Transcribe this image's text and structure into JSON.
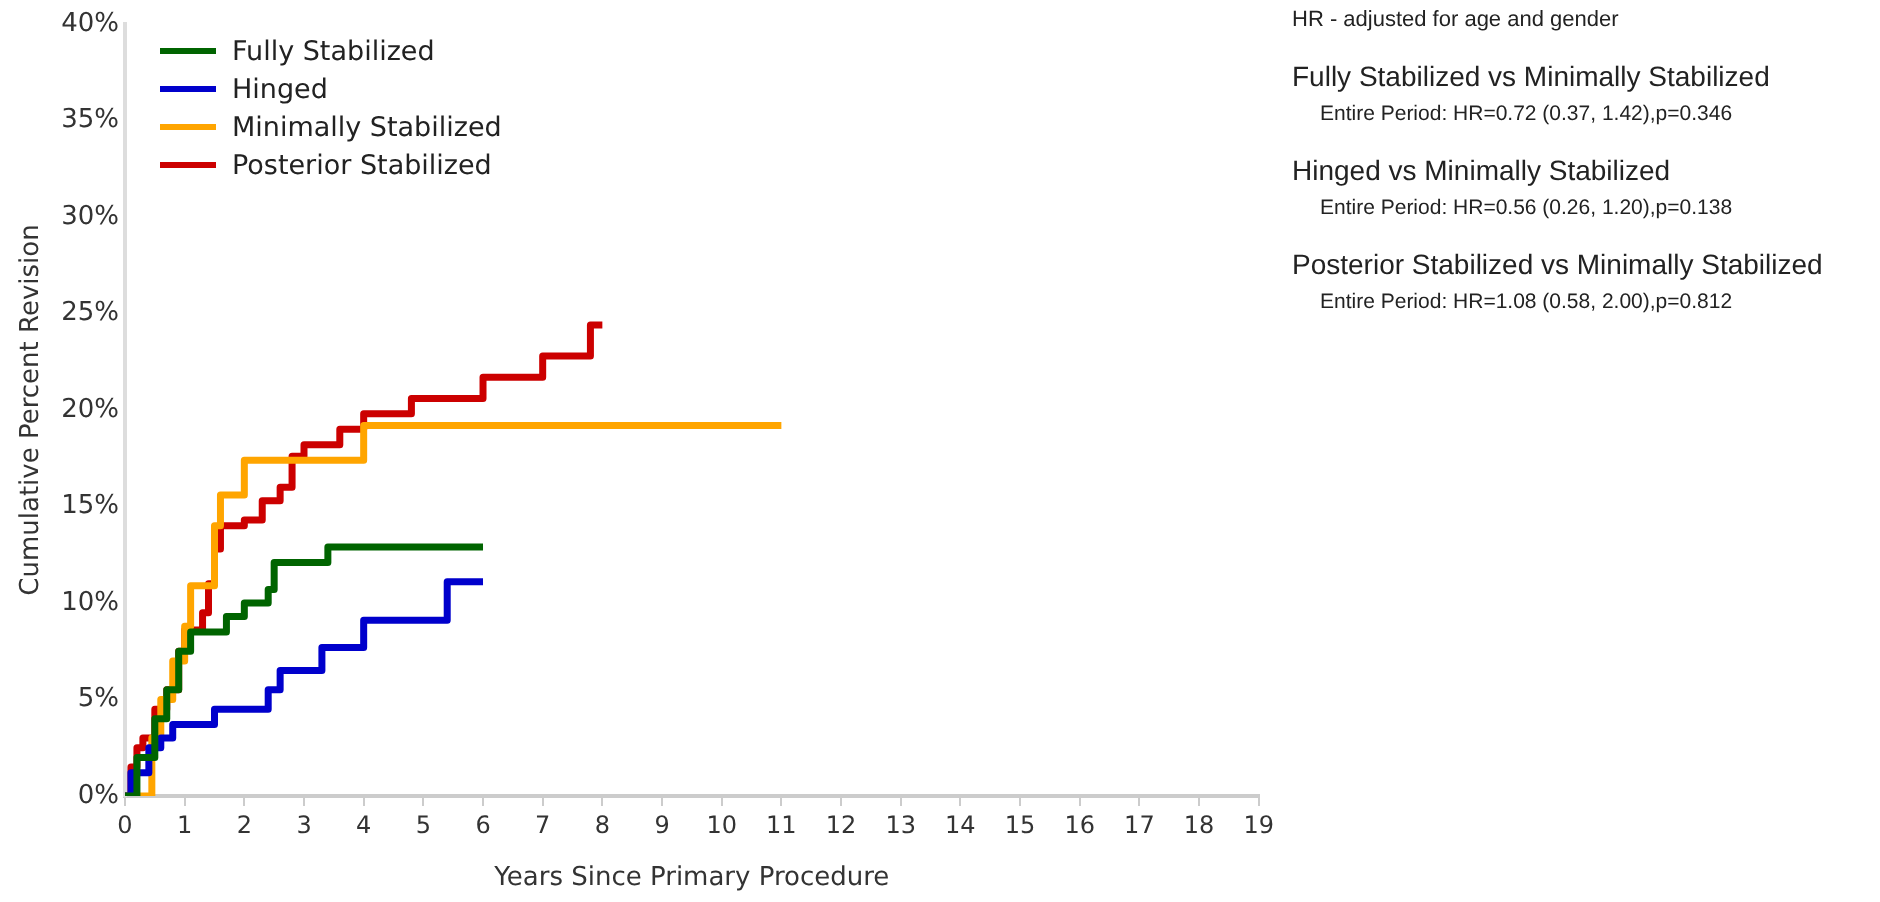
{
  "chart_data": {
    "type": "step",
    "xlabel": "Years Since Primary Procedure",
    "ylabel": "Cumulative Percent Revision",
    "xlim": [
      0,
      19
    ],
    "xticks": [
      0,
      1,
      2,
      3,
      4,
      5,
      6,
      7,
      8,
      9,
      10,
      11,
      12,
      13,
      14,
      15,
      16,
      17,
      18,
      19
    ],
    "ylim": [
      0,
      40
    ],
    "yticks": [
      {
        "value": 0,
        "label": "0%"
      },
      {
        "value": 5,
        "label": "5%"
      },
      {
        "value": 10,
        "label": "10%"
      },
      {
        "value": 15,
        "label": "15%"
      },
      {
        "value": 20,
        "label": "20%"
      },
      {
        "value": 25,
        "label": "25%"
      },
      {
        "value": 30,
        "label": "30%"
      },
      {
        "value": 35,
        "label": "35%"
      },
      {
        "value": 40,
        "label": "40%"
      }
    ],
    "grid": false,
    "legend": "top left",
    "series": [
      {
        "name": "Fully Stabilized",
        "color": "#006400",
        "x": [
          0,
          0.2,
          0.5,
          0.7,
          0.9,
          1.1,
          1.7,
          2.0,
          2.4,
          2.5,
          3.4,
          6
        ],
        "values": [
          0,
          2,
          4,
          5.5,
          7.5,
          8.5,
          9.3,
          10,
          10.7,
          12.1,
          12.9,
          12.9
        ]
      },
      {
        "name": "Hinged",
        "color": "#0000cc",
        "x": [
          0,
          0.1,
          0.4,
          0.6,
          0.8,
          1.5,
          2.4,
          2.6,
          3.3,
          4.0,
          5.4,
          6
        ],
        "values": [
          0,
          1.2,
          2.5,
          3,
          3.7,
          4.5,
          5.5,
          6.5,
          7.7,
          9.1,
          11.1,
          11.1
        ]
      },
      {
        "name": "Minimally Stabilized",
        "color": "#ffa500",
        "x": [
          0,
          0.45,
          0.6,
          0.8,
          1.0,
          1.1,
          1.5,
          1.6,
          2.0,
          4.0,
          11
        ],
        "values": [
          0,
          3,
          5,
          7,
          8.8,
          10.9,
          14,
          15.6,
          17.4,
          19.2,
          19.2
        ]
      },
      {
        "name": "Posterior Stabilized",
        "color": "#cc0000",
        "x": [
          0,
          0.1,
          0.2,
          0.3,
          0.5,
          0.7,
          0.9,
          1.0,
          1.3,
          1.4,
          1.5,
          1.6,
          2.0,
          2.3,
          2.6,
          2.8,
          3.0,
          3.6,
          4.0,
          4.8,
          6.0,
          7.0,
          7.8,
          8.0
        ],
        "values": [
          0,
          1.5,
          2.5,
          3,
          4.5,
          5.5,
          7.5,
          8.6,
          9.5,
          11,
          12.8,
          14,
          14.3,
          15.3,
          16,
          17.6,
          18.2,
          19,
          19.8,
          20.6,
          21.7,
          22.8,
          24.4,
          24.4
        ]
      }
    ],
    "annotations": [
      "HR - adjusted for age and gender",
      "Fully Stabilized vs Minimally Stabilized",
      "Entire Period: HR=0.72 (0.37, 1.42),p=0.346",
      "Hinged vs Minimally Stabilized",
      "Entire Period: HR=0.56 (0.26, 1.20),p=0.138",
      "Posterior Stabilized vs Minimally Stabilized",
      "Entire Period: HR=1.08 (0.58, 2.00),p=0.812"
    ]
  }
}
